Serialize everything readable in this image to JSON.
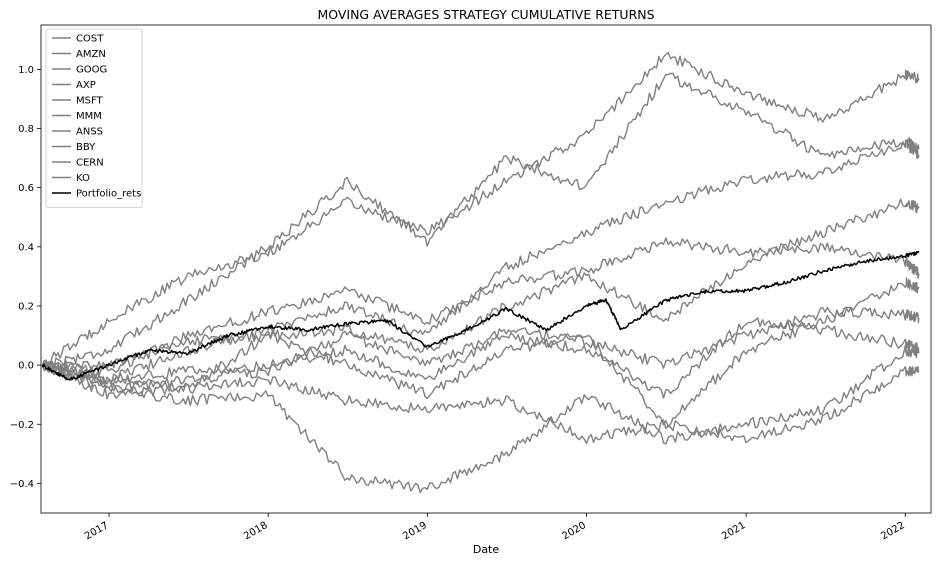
{
  "chart_data": {
    "type": "line",
    "title": "MOVING AVERAGES STRATEGY CUMULATIVE RETURNS",
    "xlabel": "Date",
    "ylabel": "",
    "xlim": [
      "2016-07-29",
      "2022-03-01"
    ],
    "ylim": [
      -0.5,
      1.15
    ],
    "x_ticks": [
      "2017",
      "2018",
      "2019",
      "2020",
      "2021",
      "2022"
    ],
    "y_ticks": [
      "−0.4",
      "−0.2",
      "0.0",
      "0.2",
      "0.4",
      "0.6",
      "0.8",
      "1.0"
    ],
    "grid": false,
    "legend_position": "upper-left",
    "colors": {
      "constituents": "#808080",
      "portfolio": "#000000"
    },
    "series": [
      {
        "name": "COST",
        "x": [
          "2016-08-01",
          "2017-01-01",
          "2017-07-01",
          "2018-01-01",
          "2018-07-01",
          "2019-01-01",
          "2019-07-01",
          "2020-01-01",
          "2020-07-01",
          "2021-01-01",
          "2021-07-01",
          "2022-01-01",
          "2022-02-01"
        ],
        "values": [
          0.0,
          0.15,
          0.3,
          0.38,
          0.55,
          0.45,
          0.62,
          0.78,
          1.05,
          0.92,
          0.83,
          0.98,
          0.97
        ]
      },
      {
        "name": "AMZN",
        "x": [
          "2016-08-01",
          "2017-01-01",
          "2017-07-01",
          "2018-01-01",
          "2018-07-01",
          "2019-01-01",
          "2019-07-01",
          "2020-01-01",
          "2020-07-01",
          "2021-01-01",
          "2021-07-01",
          "2022-01-01",
          "2022-02-01"
        ],
        "values": [
          0.0,
          0.05,
          0.22,
          0.4,
          0.62,
          0.42,
          0.7,
          0.6,
          0.98,
          0.86,
          0.7,
          0.76,
          0.73
        ]
      },
      {
        "name": "GOOG",
        "x": [
          "2016-08-01",
          "2017-01-01",
          "2017-07-01",
          "2018-01-01",
          "2018-07-01",
          "2019-01-01",
          "2019-07-01",
          "2020-01-01",
          "2020-07-01",
          "2021-01-01",
          "2021-07-01",
          "2022-01-01",
          "2022-02-01"
        ],
        "values": [
          0.0,
          -0.05,
          0.05,
          0.12,
          0.2,
          0.1,
          0.33,
          0.45,
          0.55,
          0.63,
          0.65,
          0.75,
          0.71
        ]
      },
      {
        "name": "AXP",
        "x": [
          "2016-08-01",
          "2017-01-01",
          "2017-07-01",
          "2018-01-01",
          "2018-07-01",
          "2019-01-01",
          "2019-07-01",
          "2020-01-01",
          "2020-07-01",
          "2021-01-01",
          "2021-07-01",
          "2022-01-01",
          "2022-02-01"
        ],
        "values": [
          0.0,
          0.0,
          0.08,
          0.1,
          0.12,
          0.05,
          0.2,
          0.3,
          0.15,
          0.35,
          0.45,
          0.55,
          0.53
        ]
      },
      {
        "name": "MSFT",
        "x": [
          "2016-08-01",
          "2017-01-01",
          "2017-07-01",
          "2018-01-01",
          "2018-07-01",
          "2019-01-01",
          "2019-07-01",
          "2020-01-01",
          "2020-07-01",
          "2021-01-01",
          "2021-07-01",
          "2022-01-01",
          "2022-02-01"
        ],
        "values": [
          0.0,
          -0.02,
          0.1,
          0.18,
          0.25,
          0.15,
          0.28,
          0.32,
          0.42,
          0.38,
          0.4,
          0.35,
          0.31
        ]
      },
      {
        "name": "MMM",
        "x": [
          "2016-08-01",
          "2017-01-01",
          "2017-07-01",
          "2018-01-01",
          "2018-07-01",
          "2019-01-01",
          "2019-07-01",
          "2020-01-01",
          "2020-07-01",
          "2021-01-01",
          "2021-07-01",
          "2022-01-01",
          "2022-02-01"
        ],
        "values": [
          0.0,
          -0.05,
          -0.08,
          0.1,
          0.0,
          -0.1,
          0.05,
          0.1,
          -0.2,
          0.05,
          0.15,
          0.28,
          0.26
        ]
      },
      {
        "name": "ANSS",
        "x": [
          "2016-08-01",
          "2017-01-01",
          "2017-07-01",
          "2018-01-01",
          "2018-07-01",
          "2019-01-01",
          "2019-07-01",
          "2020-01-01",
          "2020-07-01",
          "2021-01-01",
          "2021-07-01",
          "2022-01-01",
          "2022-02-01"
        ],
        "values": [
          0.0,
          -0.08,
          -0.05,
          -0.02,
          0.1,
          0.0,
          0.12,
          0.08,
          0.0,
          0.1,
          0.18,
          0.17,
          0.16
        ]
      },
      {
        "name": "BBY",
        "x": [
          "2016-08-01",
          "2017-01-01",
          "2017-07-01",
          "2018-01-01",
          "2018-07-01",
          "2019-01-01",
          "2019-07-01",
          "2020-01-01",
          "2020-07-01",
          "2021-01-01",
          "2021-07-01",
          "2022-01-01",
          "2022-02-01"
        ],
        "values": [
          0.0,
          -0.05,
          -0.02,
          0.0,
          0.05,
          -0.05,
          0.1,
          0.05,
          -0.1,
          0.15,
          0.12,
          0.07,
          0.06
        ]
      },
      {
        "name": "CERN",
        "x": [
          "2016-08-01",
          "2017-01-01",
          "2017-07-01",
          "2018-01-01",
          "2018-07-01",
          "2019-01-01",
          "2019-07-01",
          "2020-01-01",
          "2020-07-01",
          "2021-01-01",
          "2021-07-01",
          "2022-01-01",
          "2022-02-01"
        ],
        "values": [
          0.0,
          -0.08,
          -0.12,
          -0.1,
          -0.38,
          -0.42,
          -0.3,
          -0.1,
          -0.25,
          -0.2,
          -0.15,
          0.05,
          0.04
        ]
      },
      {
        "name": "KO",
        "x": [
          "2016-08-01",
          "2017-01-01",
          "2017-07-01",
          "2018-01-01",
          "2018-07-01",
          "2019-01-01",
          "2019-07-01",
          "2020-01-01",
          "2020-07-01",
          "2021-01-01",
          "2021-07-01",
          "2022-01-01",
          "2022-02-01"
        ],
        "values": [
          0.0,
          -0.1,
          -0.08,
          -0.05,
          -0.12,
          -0.15,
          -0.12,
          -0.25,
          -0.2,
          -0.25,
          -0.18,
          -0.02,
          -0.02
        ]
      },
      {
        "name": "Portfolio_rets",
        "x": [
          "2016-08-01",
          "2016-10-01",
          "2017-01-01",
          "2017-04-01",
          "2017-07-01",
          "2017-10-01",
          "2018-01-01",
          "2018-04-01",
          "2018-07-01",
          "2018-10-01",
          "2019-01-01",
          "2019-04-01",
          "2019-07-01",
          "2019-10-01",
          "2020-01-01",
          "2020-02-15",
          "2020-03-20",
          "2020-07-01",
          "2020-10-01",
          "2021-01-01",
          "2021-04-01",
          "2021-07-01",
          "2021-10-01",
          "2022-01-01",
          "2022-02-01"
        ],
        "values": [
          0.0,
          -0.05,
          0.0,
          0.05,
          0.04,
          0.1,
          0.13,
          0.12,
          0.14,
          0.15,
          0.06,
          0.12,
          0.19,
          0.12,
          0.2,
          0.22,
          0.12,
          0.22,
          0.25,
          0.25,
          0.28,
          0.32,
          0.35,
          0.37,
          0.38
        ]
      }
    ]
  }
}
